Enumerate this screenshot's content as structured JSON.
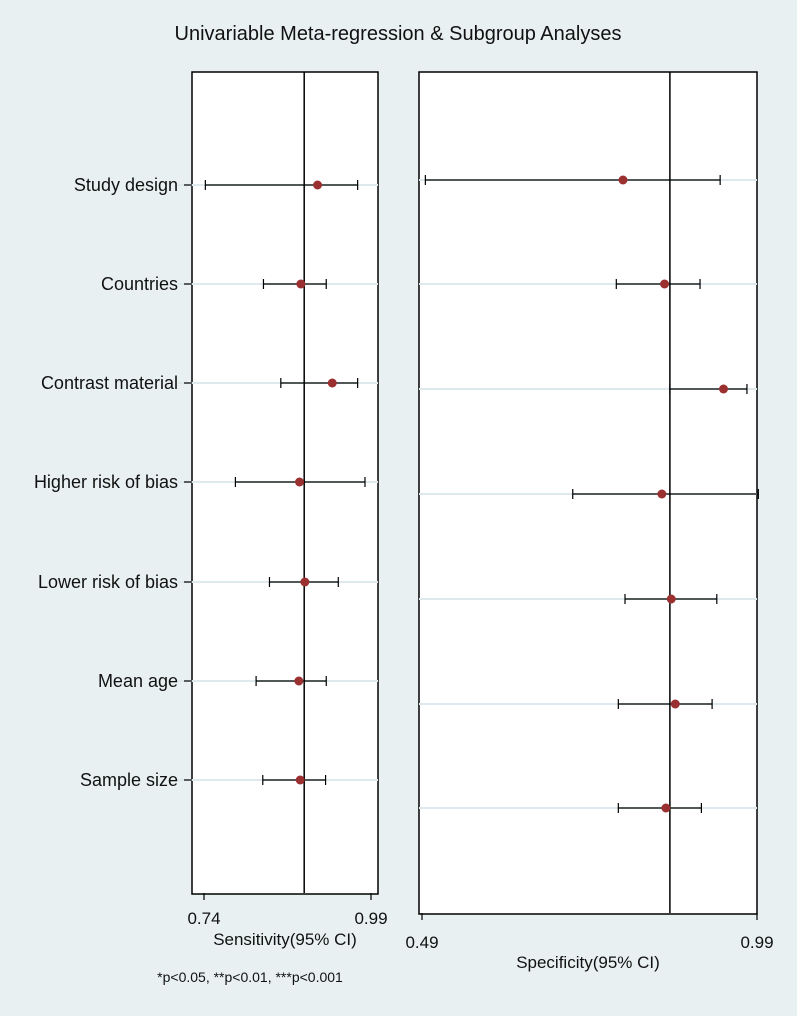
{
  "title": "Univariable Meta-regression & Subgroup Analyses",
  "footnote": "*p<0.05, **p<0.01, ***p<0.001",
  "chart_data": [
    {
      "type": "scatter",
      "subtype": "forest-plot",
      "xlabel": "Sensitivity(95% CI)",
      "xlim": [
        0.74,
        0.99
      ],
      "xticks": [
        0.74,
        0.99
      ],
      "xtick_labels": [
        "0.74",
        "0.99"
      ],
      "reference_x": 0.89,
      "grid": true,
      "marker_color": "#9b3030",
      "categories": [
        "Study design",
        "Countries",
        "Contrast material",
        "Higher risk of bias",
        "Lower risk of bias",
        "Mean age",
        "Sample size"
      ],
      "estimate": [
        0.91,
        0.885,
        0.932,
        0.883,
        0.891,
        0.882,
        0.884
      ],
      "ci_low": [
        0.742,
        0.829,
        0.855,
        0.787,
        0.838,
        0.818,
        0.828
      ],
      "ci_high": [
        0.97,
        0.923,
        0.97,
        0.981,
        0.941,
        0.923,
        0.922
      ]
    },
    {
      "type": "scatter",
      "subtype": "forest-plot",
      "xlabel": "Specificity(95% CI)",
      "xlim": [
        0.49,
        0.99
      ],
      "xticks": [
        0.49,
        0.99
      ],
      "xtick_labels": [
        "0.49",
        "0.99"
      ],
      "reference_x": 0.86,
      "grid": true,
      "marker_color": "#9b3030",
      "categories": [
        "Study design",
        "Countries",
        "Contrast material",
        "Higher risk of bias",
        "Lower risk of bias",
        "Mean age",
        "Sample size"
      ],
      "estimate": [
        0.79,
        0.852,
        0.94,
        0.848,
        0.862,
        0.868,
        0.854
      ],
      "ci_low": [
        0.495,
        0.78,
        0.86,
        0.715,
        0.793,
        0.783,
        0.783
      ],
      "ci_high": [
        0.935,
        0.905,
        0.975,
        0.992,
        0.93,
        0.923,
        0.907
      ]
    }
  ]
}
